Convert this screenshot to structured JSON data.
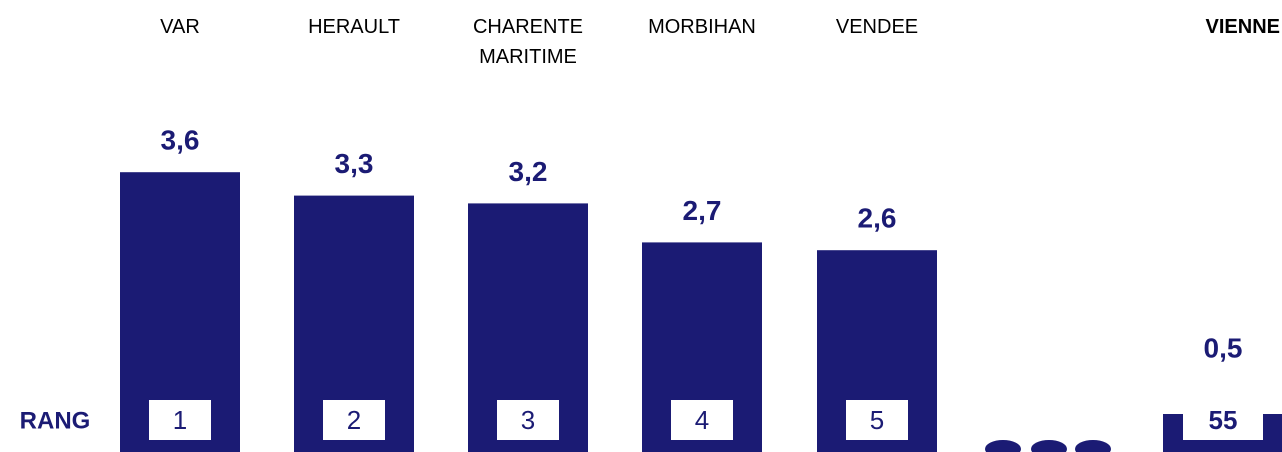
{
  "chart_data": {
    "type": "bar",
    "categories": [
      "VAR",
      "HERAULT",
      "CHARENTE MARITIME",
      "MORBIHAN",
      "VENDEE",
      "VIENNE"
    ],
    "values": [
      3.6,
      3.3,
      3.2,
      2.7,
      2.6,
      0.5
    ],
    "value_labels": [
      "3,6",
      "3,3",
      "3,2",
      "2,7",
      "2,6",
      "0,5"
    ],
    "ranks": [
      1,
      2,
      3,
      4,
      5,
      55
    ],
    "rank_label": "RANG",
    "color": "#1b1b74"
  }
}
